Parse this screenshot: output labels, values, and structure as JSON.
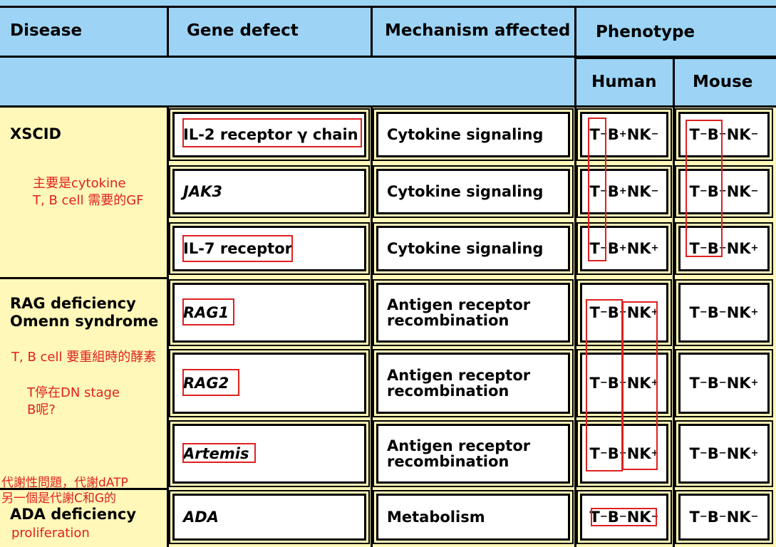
{
  "header": {
    "disease": "Disease",
    "gene_defect": "Gene defect",
    "mechanism": "Mechanism affected",
    "phenotype": "Phenotype",
    "human": "Human",
    "mouse": "Mouse"
  },
  "groups": [
    {
      "disease": [
        "XSCID"
      ]
    },
    {
      "disease": [
        "RAG deficiency",
        "Omenn syndrome"
      ]
    },
    {
      "disease": [
        "ADA deficiency"
      ]
    }
  ],
  "rows": [
    {
      "gene": "IL-2 receptor γ chain",
      "mechanism": [
        "Cytokine signaling"
      ],
      "human": "T-B+NK-",
      "mouse": "T-B-NK-"
    },
    {
      "gene": "JAK3",
      "mechanism": [
        "Cytokine signaling"
      ],
      "human": "T-B+NK-",
      "mouse": "T-B-NK-"
    },
    {
      "gene": "IL-7 receptor",
      "mechanism": [
        "Cytokine signaling"
      ],
      "human": "T-B+NK+",
      "mouse": "T-B-NK+"
    },
    {
      "gene": "RAG1",
      "mechanism": [
        "Antigen receptor",
        "recombination"
      ],
      "human": "T-B-NK+",
      "mouse": "T-B-NK+"
    },
    {
      "gene": "RAG2",
      "mechanism": [
        "Antigen receptor",
        "recombination"
      ],
      "human": "T-B-NK+",
      "mouse": "T-B-NK+"
    },
    {
      "gene": "Artemis",
      "mechanism": [
        "Antigen receptor",
        "recombination"
      ],
      "human": "T-B-NK+",
      "mouse": "T-B-NK+"
    },
    {
      "gene": "ADA",
      "mechanism": [
        "Metabolism"
      ],
      "human": "T-B-NK-",
      "mouse": "T-B-NK-"
    }
  ],
  "annotations": {
    "xscid_note": [
      "主要是cytokine",
      "T, B cell 需要的GF"
    ],
    "rag_note": "T, B cell 要重組時的酵素",
    "dn_note": [
      "T停在DN stage",
      "B呢?"
    ],
    "ada_note": [
      "代謝性問題，代謝dATP",
      "另一個是代謝C和G的"
    ],
    "proliferation_note": "proliferation"
  },
  "colors": {
    "header_blue": "#9dd4f6",
    "body_yellow": "#fff8b8",
    "annotation_red": "#e02020"
  }
}
